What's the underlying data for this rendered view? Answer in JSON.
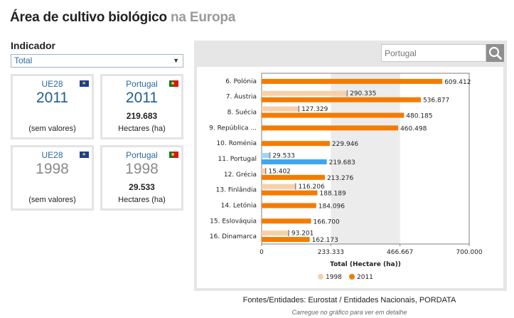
{
  "page": {
    "title_main": "Área de cultivo biológico",
    "title_sub": "na Europa"
  },
  "indicator": {
    "label": "Indicador",
    "selected": "Total"
  },
  "cards": [
    {
      "region": "UE28",
      "flag": "eu-flag-icon",
      "year": "2011",
      "value": "",
      "unit": "(sem valores)"
    },
    {
      "region": "Portugal",
      "flag": "pt-flag-icon",
      "year": "2011",
      "value": "219.683",
      "unit": "Hectares (ha)"
    },
    {
      "region": "UE28",
      "flag": "eu-flag-icon",
      "year": "1998",
      "value": "",
      "unit": "(sem valores)"
    },
    {
      "region": "Portugal",
      "flag": "pt-flag-icon",
      "year": "1998",
      "value": "29.533",
      "unit": "Hectares (ha)"
    }
  ],
  "search": {
    "placeholder": "Portugal",
    "icon": "search-icon"
  },
  "colors": {
    "y1998": "#f9cfaa",
    "y2011": "#f57b00",
    "highlight1998": "#a3d4f7",
    "highlight2011": "#3fa6ef"
  },
  "chart_data": {
    "type": "bar",
    "orientation": "horizontal",
    "categories": [
      "6. Polónia",
      "7. Áustria",
      "8. Suécia",
      "9. República ...",
      "10. Roménia",
      "11. Portugal",
      "12. Grécia",
      "13. Finlândia",
      "14. Letónia",
      "15. Eslováquia",
      "16. Dinamarca"
    ],
    "highlight_category": "11. Portugal",
    "series": [
      {
        "name": "1998",
        "values": [
          null,
          290335,
          127329,
          null,
          null,
          29533,
          15402,
          116206,
          null,
          null,
          93201
        ],
        "labels": [
          "",
          "290.335",
          "127.329",
          "",
          "",
          "29.533",
          "15.402",
          "116.206",
          "",
          "",
          "93.201"
        ]
      },
      {
        "name": "2011",
        "values": [
          609412,
          536877,
          480185,
          460498,
          229946,
          219683,
          213276,
          188189,
          184096,
          166700,
          162173
        ],
        "labels": [
          "609.412",
          "536.877",
          "480.185",
          "460.498",
          "229.946",
          "219.683",
          "213.276",
          "188.189",
          "184.096",
          "166.700",
          "162.173"
        ]
      }
    ],
    "xlabel": "Total (Hectare (ha))",
    "xlim": [
      0,
      700000
    ],
    "xticks": [
      0,
      233333,
      466667,
      700000
    ],
    "xtick_labels": [
      "0",
      "233.333",
      "466.667",
      "700.000"
    ],
    "shaded_band": [
      233333,
      466667
    ],
    "legend_position": "bottom"
  },
  "footer": {
    "source": "Fontes/Entidades: Eurostat / Entidades Nacionais, PORDATA",
    "hint": "Carregue no gráfico para ver em detalhe"
  }
}
